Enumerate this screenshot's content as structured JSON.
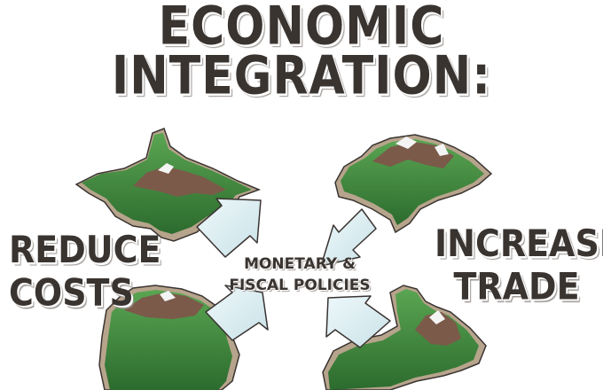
{
  "title": {
    "line1": "ECONOMIC",
    "line2": "INTEGRATION:"
  },
  "left_label": {
    "line1": "REDUCE",
    "line2": "COSTS"
  },
  "right_label": {
    "line1": "INCREASE",
    "line2": "TRADE"
  },
  "center_label": {
    "line1": "MONETARY &",
    "line2": "FISCAL POLICIES"
  },
  "colors": {
    "island_green": "#3f8a3c",
    "island_dark_green": "#2c6b2e",
    "mountain_brown": "#7b5a4a",
    "snow": "#f4f4f4",
    "shore": "#b7a48c",
    "arrow_fill": "#dceef2",
    "arrow_stroke": "#3a3431",
    "text": "#3a3431"
  },
  "icons": [
    "island-top-left",
    "island-bottom-left",
    "island-top-right",
    "island-bottom-right",
    "arrow-icon"
  ]
}
